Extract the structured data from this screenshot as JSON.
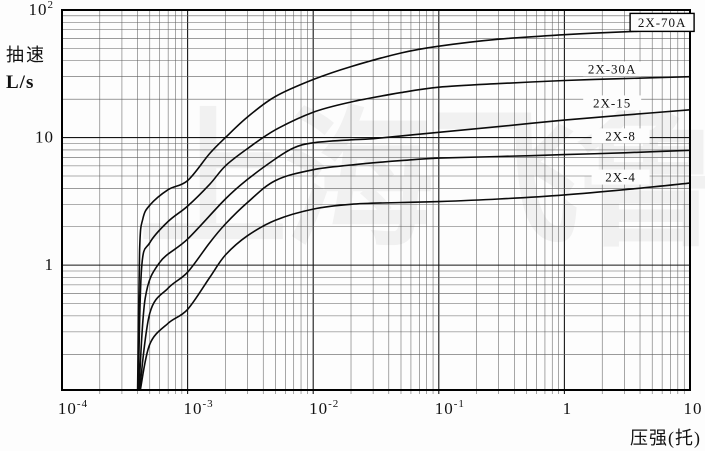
{
  "figure": {
    "watermark_text": "上海飞鲁"
  },
  "chart_data": {
    "type": "line",
    "title": "",
    "xlabel": "压强(托)",
    "ylabel": "抽速",
    "ylabel_units": "L/s",
    "x_scale": "log",
    "y_scale": "log",
    "xlim": [
      0.0001,
      10
    ],
    "ylim": [
      0.105,
      100
    ],
    "grid": "log-log, major and minor lines on both axes",
    "legend_position": "labels beside curves, right side",
    "x_ticks": [
      {
        "base": "10",
        "exp": "-4",
        "value": 0.0001
      },
      {
        "base": "10",
        "exp": "-3",
        "value": 0.001
      },
      {
        "base": "10",
        "exp": "-2",
        "value": 0.01
      },
      {
        "base": "10",
        "exp": "-1",
        "value": 0.1
      },
      {
        "base": "1",
        "exp": "",
        "value": 1
      },
      {
        "base": "10",
        "exp": "",
        "value": 10
      }
    ],
    "y_ticks": [
      {
        "base": "10",
        "exp": "2",
        "value": 100
      },
      {
        "base": "10",
        "exp": "",
        "value": 10
      },
      {
        "base": "1",
        "exp": "",
        "value": 1
      }
    ],
    "series": [
      {
        "name": "2X-70A",
        "boxed_label": true,
        "label_at": [
          6.0,
          80
        ],
        "points": [
          [
            0.0004,
            0.105
          ],
          [
            0.000415,
            1.3
          ],
          [
            0.00044,
            2.3
          ],
          [
            0.0005,
            2.95
          ],
          [
            0.0007,
            3.9
          ],
          [
            0.001,
            4.6
          ],
          [
            0.0015,
            7.5
          ],
          [
            0.002,
            10
          ],
          [
            0.003,
            14.5
          ],
          [
            0.005,
            21
          ],
          [
            0.01,
            28.5
          ],
          [
            0.02,
            36
          ],
          [
            0.05,
            46
          ],
          [
            0.1,
            52
          ],
          [
            0.3,
            59
          ],
          [
            1,
            64
          ],
          [
            3,
            67.5
          ],
          [
            10,
            70
          ]
        ]
      },
      {
        "name": "2X-30A",
        "boxed_label": false,
        "label_at": [
          2.4,
          34.5
        ],
        "points": [
          [
            0.000405,
            0.105
          ],
          [
            0.00043,
            0.95
          ],
          [
            0.0005,
            1.5
          ],
          [
            0.0007,
            2.2
          ],
          [
            0.001,
            2.9
          ],
          [
            0.0015,
            4.3
          ],
          [
            0.002,
            6
          ],
          [
            0.003,
            8.2
          ],
          [
            0.005,
            11.5
          ],
          [
            0.01,
            15.8
          ],
          [
            0.02,
            19
          ],
          [
            0.05,
            22.5
          ],
          [
            0.1,
            24.8
          ],
          [
            0.3,
            26.5
          ],
          [
            1,
            28
          ],
          [
            3,
            29
          ],
          [
            10,
            30
          ]
        ]
      },
      {
        "name": "2X-15",
        "boxed_label": false,
        "label_at": [
          2.4,
          18.7
        ],
        "points": [
          [
            0.00041,
            0.105
          ],
          [
            0.00046,
            0.55
          ],
          [
            0.0006,
            1.05
          ],
          [
            0.001,
            1.6
          ],
          [
            0.002,
            3.3
          ],
          [
            0.003,
            4.7
          ],
          [
            0.005,
            6.8
          ],
          [
            0.007,
            8.3
          ],
          [
            0.01,
            9.1
          ],
          [
            0.02,
            9.6
          ],
          [
            0.03,
            9.8
          ],
          [
            0.1,
            11
          ],
          [
            0.3,
            12.2
          ],
          [
            1,
            13.7
          ],
          [
            3,
            15
          ],
          [
            10,
            16.5
          ]
        ]
      },
      {
        "name": "2X-8",
        "boxed_label": false,
        "label_at": [
          2.8,
          10.3
        ],
        "points": [
          [
            0.000415,
            0.105
          ],
          [
            0.0005,
            0.42
          ],
          [
            0.0007,
            0.66
          ],
          [
            0.001,
            0.88
          ],
          [
            0.0015,
            1.5
          ],
          [
            0.002,
            2.1
          ],
          [
            0.003,
            3.1
          ],
          [
            0.005,
            4.6
          ],
          [
            0.01,
            5.6
          ],
          [
            0.02,
            6.1
          ],
          [
            0.05,
            6.6
          ],
          [
            0.1,
            6.9
          ],
          [
            0.3,
            7.1
          ],
          [
            1,
            7.35
          ],
          [
            3,
            7.6
          ],
          [
            10,
            7.95
          ]
        ]
      },
      {
        "name": "2X-4",
        "boxed_label": false,
        "label_at": [
          2.8,
          4.9
        ],
        "points": [
          [
            0.00042,
            0.105
          ],
          [
            0.0005,
            0.24
          ],
          [
            0.0007,
            0.35
          ],
          [
            0.001,
            0.45
          ],
          [
            0.0015,
            0.8
          ],
          [
            0.002,
            1.2
          ],
          [
            0.003,
            1.7
          ],
          [
            0.005,
            2.25
          ],
          [
            0.01,
            2.75
          ],
          [
            0.02,
            3.0
          ],
          [
            0.05,
            3.1
          ],
          [
            0.1,
            3.15
          ],
          [
            0.3,
            3.3
          ],
          [
            1,
            3.55
          ],
          [
            3,
            3.9
          ],
          [
            10,
            4.4
          ]
        ]
      }
    ]
  }
}
